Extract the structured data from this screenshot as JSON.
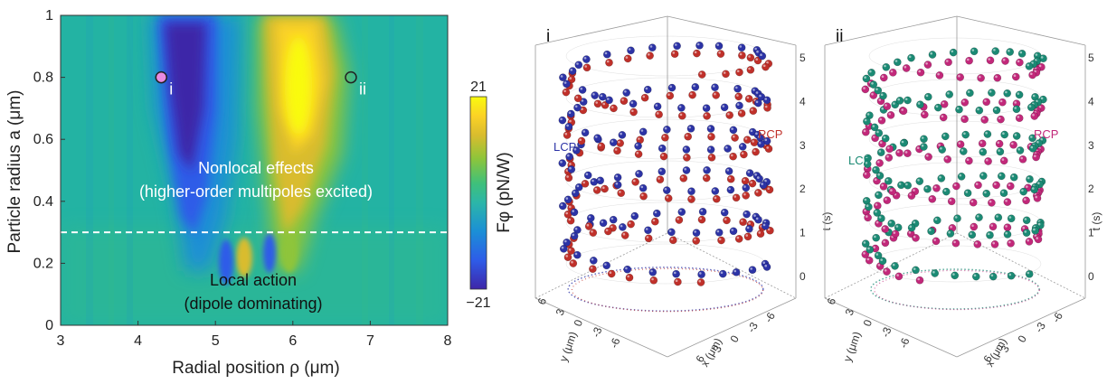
{
  "colors": {
    "colormap": [
      "#3e26a8",
      "#2e5ce8",
      "#1b8fd6",
      "#2cb6a8",
      "#3fc07a",
      "#8ec53a",
      "#d9bc2e",
      "#fbd226",
      "#f9fb0e"
    ],
    "background_level": "#23b3a3",
    "lcp_a": "#2c33a6",
    "rcp_a": "#c0302a",
    "lcp_b": "#1b8a74",
    "rcp_b": "#c2287a",
    "dashed_line": "#ffffff"
  },
  "panel_a": {
    "xlabel": "Radial position ρ (μm)",
    "ylabel": "Particle radius a (μm)",
    "x_ticks": [
      "3",
      "4",
      "5",
      "6",
      "7",
      "8"
    ],
    "y_ticks": [
      "0",
      "0.2",
      "0.4",
      "0.6",
      "0.8",
      "1"
    ],
    "colorbar": {
      "max_label": "21",
      "min_label": "−21",
      "label": "Fφ (pN/W)"
    },
    "annotations": {
      "nonlocal_1": "Nonlocal effects",
      "nonlocal_2": "(higher-order multipoles excited)",
      "local_1": "Local action",
      "local_2": "(dipole dominating)",
      "marker_i": "i",
      "marker_ii": "ii"
    }
  },
  "panel_i": {
    "tag": "i",
    "lcp_label": "LCP",
    "rcp_label": "RCP",
    "t_label": "t (s)",
    "x_label": "x (μm)",
    "y_label": "y (μm)",
    "t_ticks": [
      "0",
      "1",
      "2",
      "3",
      "4",
      "5"
    ],
    "xy_ticks": [
      "6",
      "3",
      "0",
      "-3",
      "-6"
    ]
  },
  "panel_ii": {
    "tag": "ii",
    "lcp_label": "LCP",
    "rcp_label": "RCP",
    "t_label": "t (s)",
    "x_label": "x (μm)",
    "y_label": "y (μm)",
    "t_ticks": [
      "0",
      "1",
      "2",
      "3",
      "4",
      "5"
    ],
    "xy_ticks": [
      "6",
      "3",
      "0",
      "-3",
      "-6"
    ]
  },
  "chart_data": [
    {
      "type": "heatmap",
      "title": "",
      "xlabel": "Radial position ρ (μm)",
      "ylabel": "Particle radius a (μm)",
      "xlim": [
        3,
        8
      ],
      "ylim": [
        0,
        1
      ],
      "colorbar": {
        "label": "Fφ (pN/W)",
        "range": [
          -21,
          21
        ]
      },
      "features": [
        {
          "kind": "negative_lobe",
          "rho_at_top": 4.5,
          "rho_at_0_3": 4.8,
          "peak_value": -21
        },
        {
          "kind": "positive_lobe",
          "rho_at_top": 6.1,
          "rho_at_0_3": 5.9,
          "peak_value": 21
        }
      ],
      "dashed_line_a": 0.3,
      "markers": [
        {
          "label": "i",
          "rho": 4.3,
          "a": 0.8,
          "fill": "#e98be0"
        },
        {
          "label": "ii",
          "rho": 6.75,
          "a": 0.8,
          "fill": "none"
        }
      ],
      "annotations": [
        "Nonlocal effects",
        "(higher-order multipoles excited)",
        "Local action",
        "(dipole dominating)"
      ]
    },
    {
      "type": "scatter",
      "title": "i",
      "series": [
        {
          "name": "LCP",
          "radius_um": 4.3,
          "turns": 5,
          "t_range": [
            0,
            5
          ]
        },
        {
          "name": "RCP",
          "radius_um": 4.3,
          "turns": 5,
          "t_range": [
            0,
            5
          ]
        }
      ],
      "axes": {
        "x": [
          -6,
          6
        ],
        "y": [
          -6,
          6
        ],
        "t": [
          0,
          5
        ]
      },
      "xlabel": "x (μm)",
      "ylabel": "y (μm)",
      "zlabel": "t (s)"
    },
    {
      "type": "scatter",
      "title": "ii",
      "series": [
        {
          "name": "LCP",
          "radius_um": 6.75,
          "turns": 5,
          "t_range": [
            0,
            5
          ]
        },
        {
          "name": "RCP",
          "radius_um": 6.75,
          "turns": 5,
          "t_range": [
            0,
            5
          ]
        }
      ],
      "axes": {
        "x": [
          -6,
          6
        ],
        "y": [
          -6,
          6
        ],
        "t": [
          0,
          5
        ]
      },
      "xlabel": "x (μm)",
      "ylabel": "y (μm)",
      "zlabel": "t (s)"
    }
  ]
}
